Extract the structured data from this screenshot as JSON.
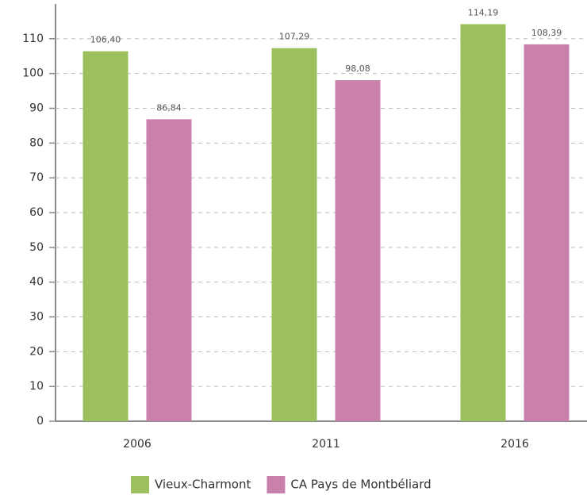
{
  "chart_data": {
    "type": "bar",
    "categories": [
      "2006",
      "2011",
      "2016"
    ],
    "series": [
      {
        "name": "Vieux-Charmont",
        "color": "#9dc05e",
        "values": [
          106.4,
          107.29,
          114.19
        ],
        "value_labels": [
          "106,40",
          "107,29",
          "114,19"
        ]
      },
      {
        "name": "CA Pays de Montbéliard",
        "color": "#c980aa",
        "values": [
          86.84,
          98.08,
          108.39
        ],
        "value_labels": [
          "86,84",
          "98,08",
          "108,39"
        ]
      }
    ],
    "ylim": [
      0,
      120
    ],
    "yticks": [
      0,
      10,
      20,
      30,
      40,
      50,
      60,
      70,
      80,
      90,
      100,
      110
    ],
    "grid": true
  }
}
